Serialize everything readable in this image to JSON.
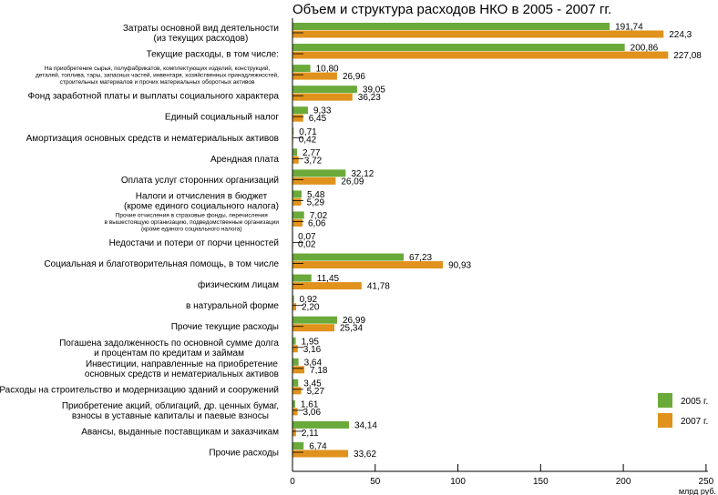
{
  "chart_data": {
    "type": "bar",
    "orientation": "horizontal",
    "title": "Объем и структура расходов НКО в 2005 - 2007 гг.",
    "xlabel": "млрд руб.",
    "xlim": [
      0,
      250
    ],
    "xticks": [
      "0",
      "50",
      "100",
      "150",
      "200",
      "250"
    ],
    "grid": false,
    "legend_position": "bottom-right",
    "colors": {
      "2005": "#6aaa3a",
      "2007": "#e0921c"
    },
    "categories": [
      [
        "Затраты основной вид деятельности",
        "(из текущих расходов)"
      ],
      [
        "Текущие расходы, в том числе:"
      ],
      [
        "На приобретение сырья, полуфабрикатов, комплектующих изделий, конструкций,",
        "деталей, топлива, тары, запасных частей, инвентаря, хозяйственных принадлежностей,",
        "строительных материалов и прочих материальных оборотных активов"
      ],
      [
        "Фонд заработной платы и выплаты социального характера"
      ],
      [
        "Единый социальный налог"
      ],
      [
        "Амортизация основных средств и нематериальных активов"
      ],
      [
        "Арендная плата"
      ],
      [
        "Оплата услуг сторонних организаций"
      ],
      [
        "Налоги и отчисления в бюджет",
        "(кроме единого социального налога)"
      ],
      [
        "Прочие отчисления в страховые фонды, перечисления",
        "в вышестоящую организацию, подведомственные организации",
        "(кроме единого социального налога)"
      ],
      [
        "Недостачи и потери от порчи ценностей"
      ],
      [
        "Социальная и благотворительная помощь, в том числе"
      ],
      [
        "физическим лицам"
      ],
      [
        "в натуральной форме"
      ],
      [
        "Прочие текущие расходы"
      ],
      [
        "Погашена задолженность по основной сумме долга",
        "и процентам по кредитам и займам"
      ],
      [
        "Инвестиции, направленные на приобретение",
        "основных средств и нематериальных активов"
      ],
      [
        "Расходы на строительство и модернизацию зданий и сооружений"
      ],
      [
        "Приобретение акций, облигаций, др. ценных бумаг,",
        "взносы в уставные капиталы и паевые взносы"
      ],
      [
        "Авансы, выданные поставщикам и заказчикам"
      ],
      [
        "Прочие расходы"
      ]
    ],
    "small_label_rows": [
      2,
      9
    ],
    "series": [
      {
        "name": "2005 г.",
        "values": [
          191.74,
          200.86,
          10.8,
          39.05,
          9.33,
          0.71,
          2.77,
          32.12,
          5.48,
          7.02,
          0.07,
          67.23,
          11.45,
          0.92,
          26.99,
          1.95,
          3.64,
          3.45,
          1.61,
          34.14,
          6.74
        ],
        "labels": [
          "191,74",
          "200,86",
          "10,80",
          "39,05",
          "9,33",
          "0,71",
          "2,77",
          "32,12",
          "5,48",
          "7,02",
          "0,07",
          "67,23",
          "11,45",
          "0,92",
          "26,99",
          "1,95",
          "3,64",
          "3,45",
          "1,61",
          "34,14",
          "6,74"
        ]
      },
      {
        "name": "2007 г.",
        "values": [
          224.3,
          227.08,
          26.96,
          36.23,
          6.45,
          0.42,
          3.72,
          26.09,
          5.29,
          6.06,
          0.02,
          90.93,
          41.78,
          2.2,
          25.34,
          3.16,
          7.18,
          5.27,
          3.06,
          2.11,
          33.62
        ],
        "labels": [
          "224,3",
          "227,08",
          "26,96",
          "36,23",
          "6,45",
          "0,42",
          "3,72",
          "26,09",
          "5,29",
          "6,06",
          "0,02",
          "90,93",
          "41,78",
          "2,20",
          "25,34",
          "3,16",
          "7,18",
          "5,27",
          "3,06",
          "2,11",
          "33,62"
        ]
      }
    ]
  }
}
